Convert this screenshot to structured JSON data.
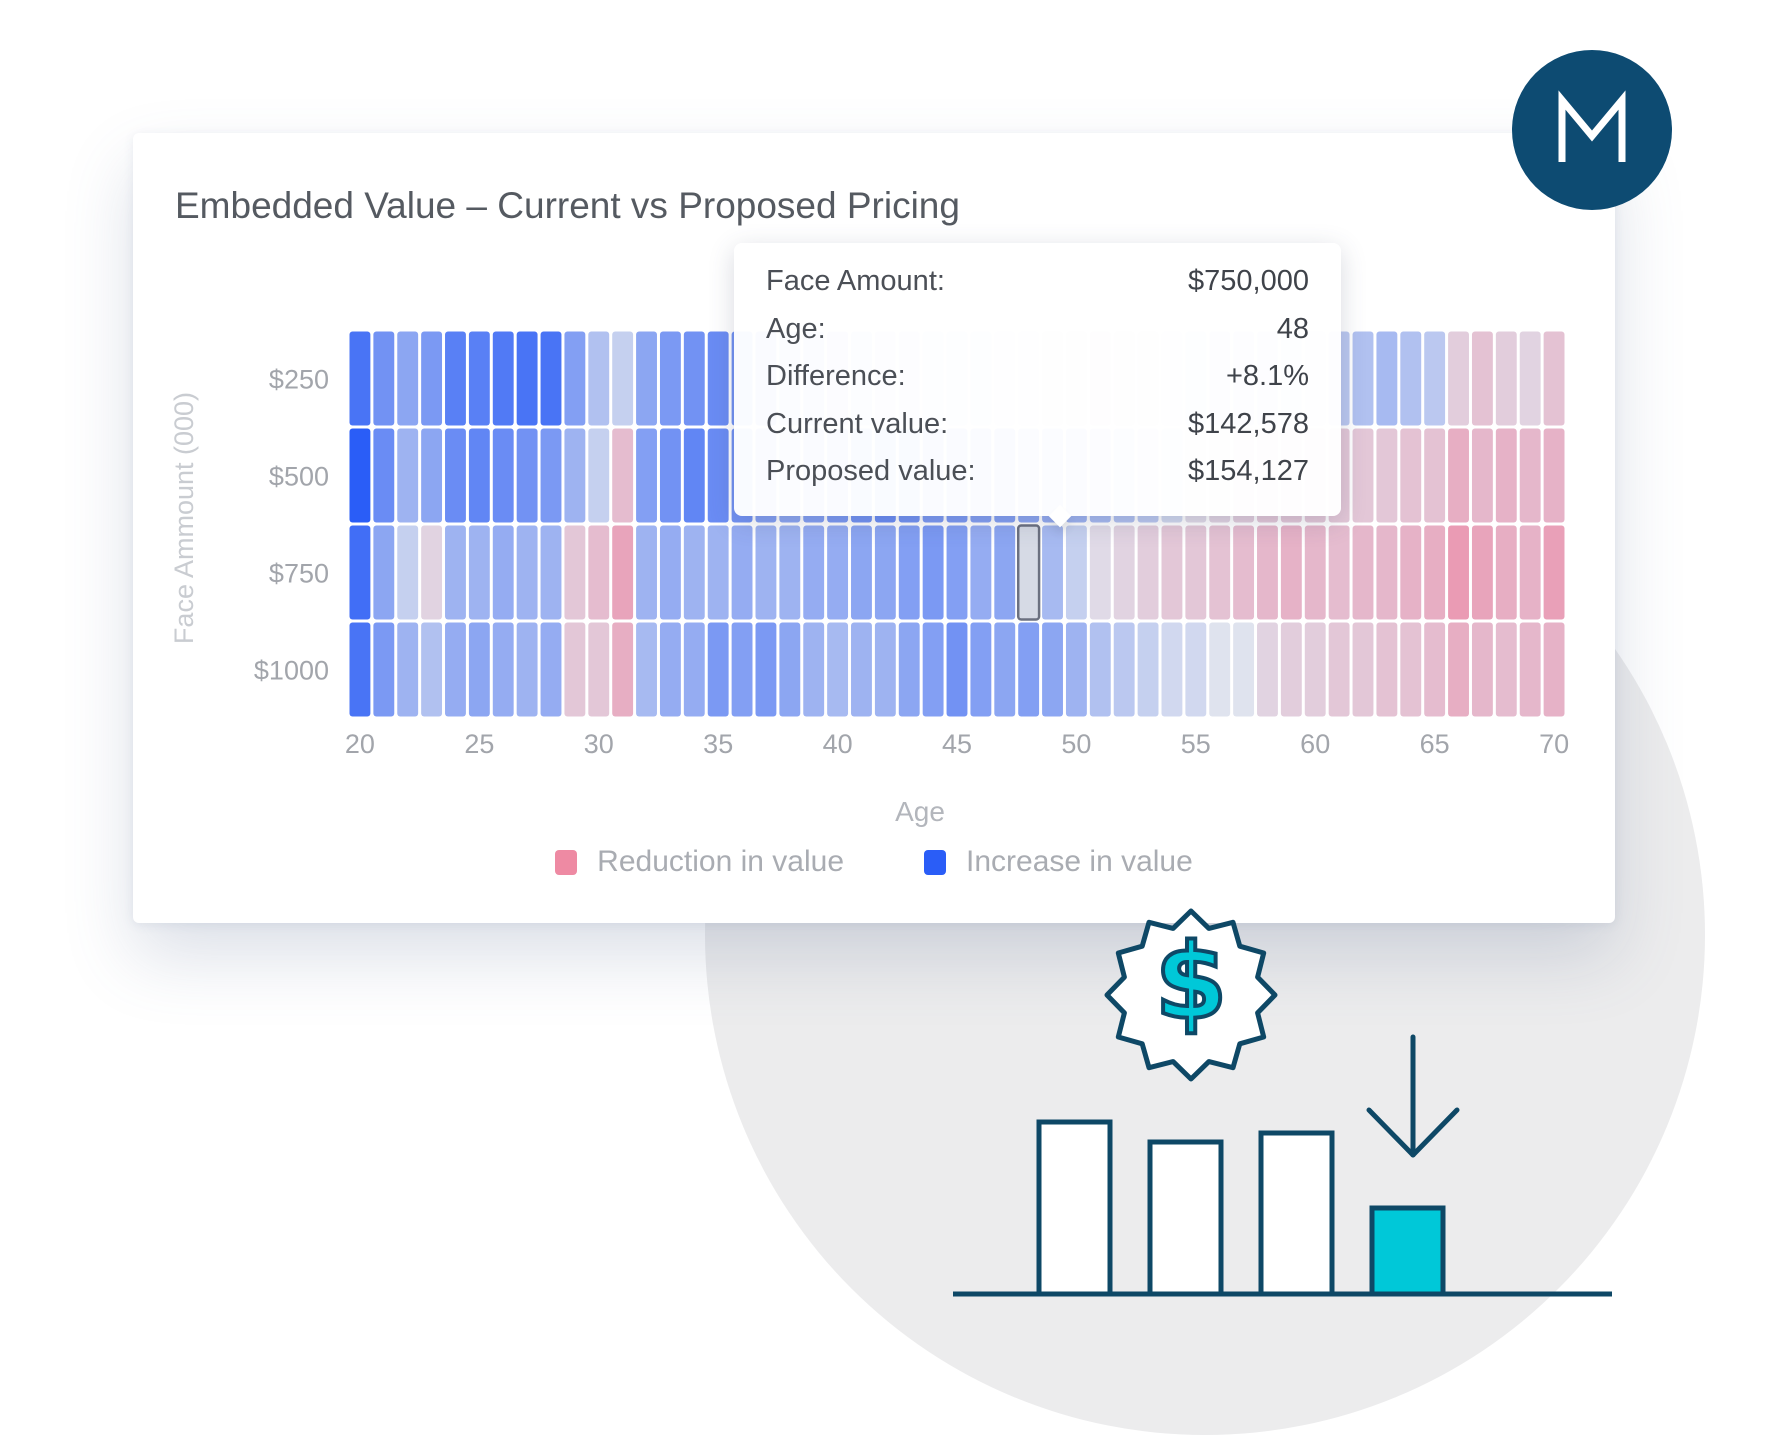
{
  "colors": {
    "increase": "#2a5df7",
    "reduction": "#ee7e9c",
    "neutral": "#dfe3ee",
    "illustration_stroke": "#0e4866",
    "illustration_accent": "#00c8d8",
    "logo_bg": "#0d4b72"
  },
  "logo": {
    "icon": "m-logo-icon"
  },
  "tooltip": {
    "rows": [
      {
        "label": "Face Amount:",
        "value": "$750,000"
      },
      {
        "label": "Age:",
        "value": "48"
      },
      {
        "label": "Difference:",
        "value": "+8.1%"
      },
      {
        "label": "Current value:",
        "value": "$142,578"
      },
      {
        "label": "Proposed value:",
        "value": "$154,127"
      }
    ],
    "highlight": {
      "row": 2,
      "age": 48
    }
  },
  "legend": {
    "position": "bottom-center",
    "items": [
      {
        "label": "Reduction in value",
        "color": "#ee7e9c"
      },
      {
        "label": "Increase in value",
        "color": "#2a5df7"
      }
    ]
  },
  "chart_data": {
    "type": "heatmap",
    "title": "Embedded Value – Current vs Proposed Pricing",
    "xlabel": "Age",
    "ylabel": "Face Ammount (000)",
    "x_ticks": [
      20,
      25,
      30,
      35,
      40,
      45,
      50,
      55,
      60,
      65,
      70
    ],
    "y_categories": [
      "$250",
      "$500",
      "$750",
      "$1000"
    ],
    "x": [
      20,
      21,
      22,
      23,
      24,
      25,
      26,
      27,
      28,
      29,
      30,
      31,
      32,
      33,
      34,
      35,
      36,
      37,
      38,
      39,
      40,
      41,
      42,
      43,
      44,
      45,
      46,
      47,
      48,
      49,
      50,
      51,
      52,
      53,
      54,
      55,
      56,
      57,
      58,
      59,
      60,
      61,
      62,
      63,
      64,
      65,
      66,
      67,
      68,
      69,
      70
    ],
    "values_percent": [
      [
        8.0,
        5.5,
        4.0,
        5.0,
        7.0,
        7.0,
        7.5,
        8.0,
        8.0,
        4.5,
        2.0,
        1.0,
        4.0,
        5.0,
        5.5,
        6.0,
        5.5,
        4.5,
        4.0,
        3.0,
        2.5,
        2.0,
        1.5,
        1.0,
        0.5,
        0.5,
        0.5,
        0.0,
        0.0,
        -0.5,
        -1.0,
        -1.5,
        -1.0,
        -0.5,
        0.0,
        0.5,
        1.0,
        1.5,
        1.0,
        0.5,
        0.0,
        1.5,
        2.0,
        2.5,
        2.0,
        1.5,
        -1.5,
        -2.5,
        -1.5,
        -1.0,
        -2.5
      ],
      [
        10.0,
        6.0,
        3.0,
        4.0,
        6.0,
        6.5,
        6.0,
        5.5,
        5.0,
        3.0,
        1.0,
        -3.0,
        4.5,
        5.5,
        6.5,
        6.0,
        5.5,
        4.5,
        4.0,
        4.5,
        5.0,
        5.5,
        6.0,
        5.5,
        5.0,
        5.0,
        4.5,
        4.5,
        4.0,
        3.5,
        3.0,
        2.5,
        2.0,
        1.5,
        0.5,
        -0.5,
        -1.0,
        -1.5,
        -2.0,
        -2.0,
        -2.0,
        -2.0,
        -2.0,
        -2.0,
        -2.5,
        -2.5,
        -4.5,
        -3.5,
        -4.0,
        -3.5,
        -4.0
      ],
      [
        8.5,
        4.0,
        1.0,
        -1.0,
        3.0,
        3.0,
        3.5,
        3.0,
        3.0,
        -2.0,
        -3.0,
        -5.5,
        3.0,
        3.5,
        3.0,
        3.0,
        3.5,
        3.0,
        3.0,
        3.5,
        3.5,
        4.0,
        4.0,
        4.5,
        5.0,
        4.5,
        3.5,
        4.0,
        8.1,
        2.5,
        1.0,
        -0.5,
        -1.0,
        -1.5,
        -2.0,
        -2.0,
        -2.5,
        -3.0,
        -3.5,
        -4.0,
        -3.5,
        -3.0,
        -3.5,
        -3.5,
        -4.0,
        -4.5,
        -6.5,
        -5.5,
        -4.5,
        -4.0,
        -6.0
      ],
      [
        8.0,
        5.0,
        3.0,
        2.0,
        3.5,
        4.0,
        3.5,
        3.0,
        3.5,
        -2.0,
        -2.0,
        -4.5,
        2.5,
        3.5,
        3.5,
        5.0,
        4.5,
        5.0,
        4.0,
        3.0,
        2.5,
        3.0,
        3.0,
        4.0,
        4.5,
        5.5,
        4.5,
        4.0,
        4.5,
        4.0,
        3.0,
        2.0,
        1.5,
        1.0,
        0.5,
        0.5,
        0.0,
        0.0,
        -1.0,
        -1.5,
        -1.5,
        -2.0,
        -2.0,
        -2.5,
        -2.5,
        -3.0,
        -4.5,
        -3.5,
        -3.0,
        -3.5,
        -4.0
      ]
    ],
    "value_range": [
      -10,
      10
    ],
    "grid": false
  }
}
